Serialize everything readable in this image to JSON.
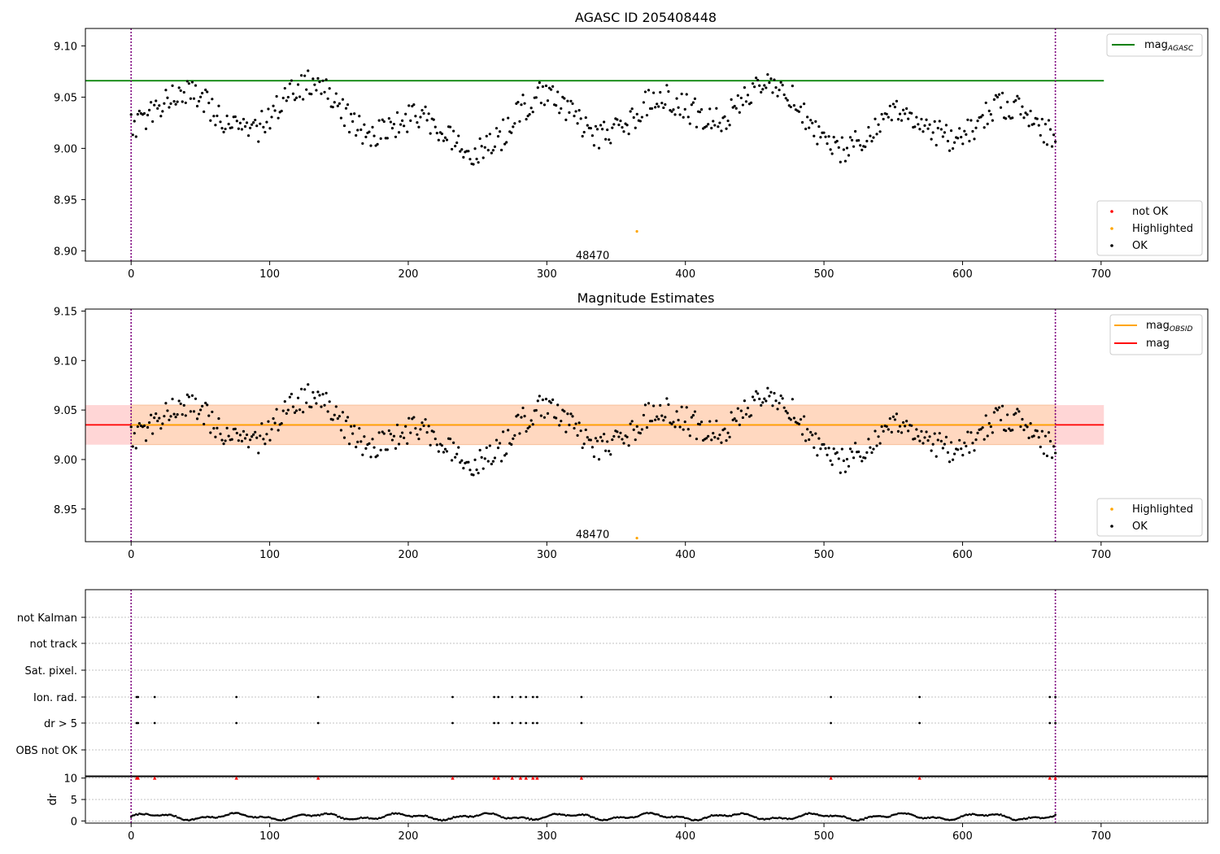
{
  "figure": {
    "title": "AGASC ID 205408448"
  },
  "chart_data": [
    {
      "id": "mag_time",
      "type": "scatter",
      "title": "",
      "xlabel": "",
      "ylabel": "",
      "xlim": [
        -33,
        777
      ],
      "ylim": [
        8.89,
        9.117
      ],
      "xticks": [
        0,
        100,
        200,
        300,
        400,
        500,
        600,
        700
      ],
      "yticks": [
        8.9,
        8.95,
        9.0,
        9.05,
        9.1
      ],
      "ytick_labels": [
        "8.90",
        "8.95",
        "9.00",
        "9.05",
        "9.10"
      ],
      "vlines": [
        0,
        667
      ],
      "vline_color": "#800080",
      "hline": {
        "name": "mag",
        "subscript": "AGASC",
        "y": 9.066,
        "x_range": [
          -33,
          702
        ],
        "color": "#008000"
      },
      "obsid_labels": [
        {
          "text": "48470",
          "x": 333,
          "y": 8.896
        }
      ],
      "highlight_point": {
        "x": 365,
        "y": 8.919,
        "color": "#ffa500"
      },
      "legend_series": [
        {
          "name": "not OK",
          "color": "#ff0000"
        },
        {
          "name": "Highlighted",
          "color": "#ffa500"
        },
        {
          "name": "OK",
          "color": "#000000"
        }
      ],
      "legend_lines": [
        {
          "name": "mag",
          "subscript": "AGASC",
          "color": "#008000"
        }
      ],
      "grid": false
    },
    {
      "id": "mag_estimates",
      "type": "scatter",
      "title": "Magnitude Estimates",
      "xlabel": "",
      "ylabel": "",
      "xlim": [
        -33,
        777
      ],
      "ylim": [
        8.917,
        9.152
      ],
      "xticks": [
        0,
        100,
        200,
        300,
        400,
        500,
        600,
        700
      ],
      "yticks": [
        8.95,
        9.0,
        9.05,
        9.1,
        9.15
      ],
      "ytick_labels": [
        "8.95",
        "9.00",
        "9.05",
        "9.10",
        "9.15"
      ],
      "vlines": [
        0,
        667
      ],
      "vline_color": "#800080",
      "band": {
        "y_low": 9.015,
        "y_high": 9.055,
        "x_range": [
          -33,
          702
        ],
        "colors": [
          "#ffd6d6",
          "#ffd8c0"
        ]
      },
      "hline": {
        "name": "mag",
        "y": 9.035,
        "x_range": [
          -33,
          702
        ],
        "color": "#ff0000"
      },
      "obsid_line": {
        "name": "mag",
        "subscript": "OBSID",
        "color": "#ffa500"
      },
      "obsid_labels": [
        {
          "text": "48470",
          "x": 333,
          "y": 8.925
        }
      ],
      "highlight_point": {
        "x": 365,
        "y": 8.919,
        "color": "#ffa500"
      },
      "legend_series": [
        {
          "name": "Highlighted",
          "color": "#ffa500"
        },
        {
          "name": "OK",
          "color": "#000000"
        }
      ],
      "legend_lines": [
        {
          "name": "mag",
          "subscript": "OBSID",
          "color": "#ffa500"
        },
        {
          "name": "mag",
          "subscript": "",
          "color": "#ff0000"
        }
      ],
      "grid": false
    },
    {
      "id": "flags",
      "type": "scatter",
      "title": "",
      "xlabel": "",
      "ylabel": "",
      "xlim": [
        -33,
        777
      ],
      "categories": [
        "not Kalman",
        "not track",
        "Sat. pixel.",
        "Ion. rad.",
        "dr > 5",
        "OBS not OK"
      ],
      "flag_x": [
        4,
        5,
        17,
        76,
        135,
        232,
        262,
        265,
        275,
        281,
        285,
        290,
        293,
        325,
        505,
        569,
        663,
        667
      ],
      "vlines": [
        0,
        667
      ],
      "vline_color": "#800080",
      "grid": true
    },
    {
      "id": "dr",
      "type": "scatter",
      "title": "",
      "xlabel": "",
      "ylabel": "dr",
      "xlim": [
        -33,
        777
      ],
      "ylim": [
        -0.5,
        10.5
      ],
      "yticks": [
        0,
        5,
        10
      ],
      "ytick_labels": [
        "0",
        "5",
        "10"
      ],
      "xticks": [
        0,
        100,
        200,
        300,
        400,
        500,
        600,
        700
      ],
      "clipped_marker": {
        "y": 10,
        "color": "#ff0000",
        "shape": "triangle"
      },
      "vlines": [
        0,
        667
      ],
      "vline_color": "#800080",
      "grid": true
    }
  ]
}
